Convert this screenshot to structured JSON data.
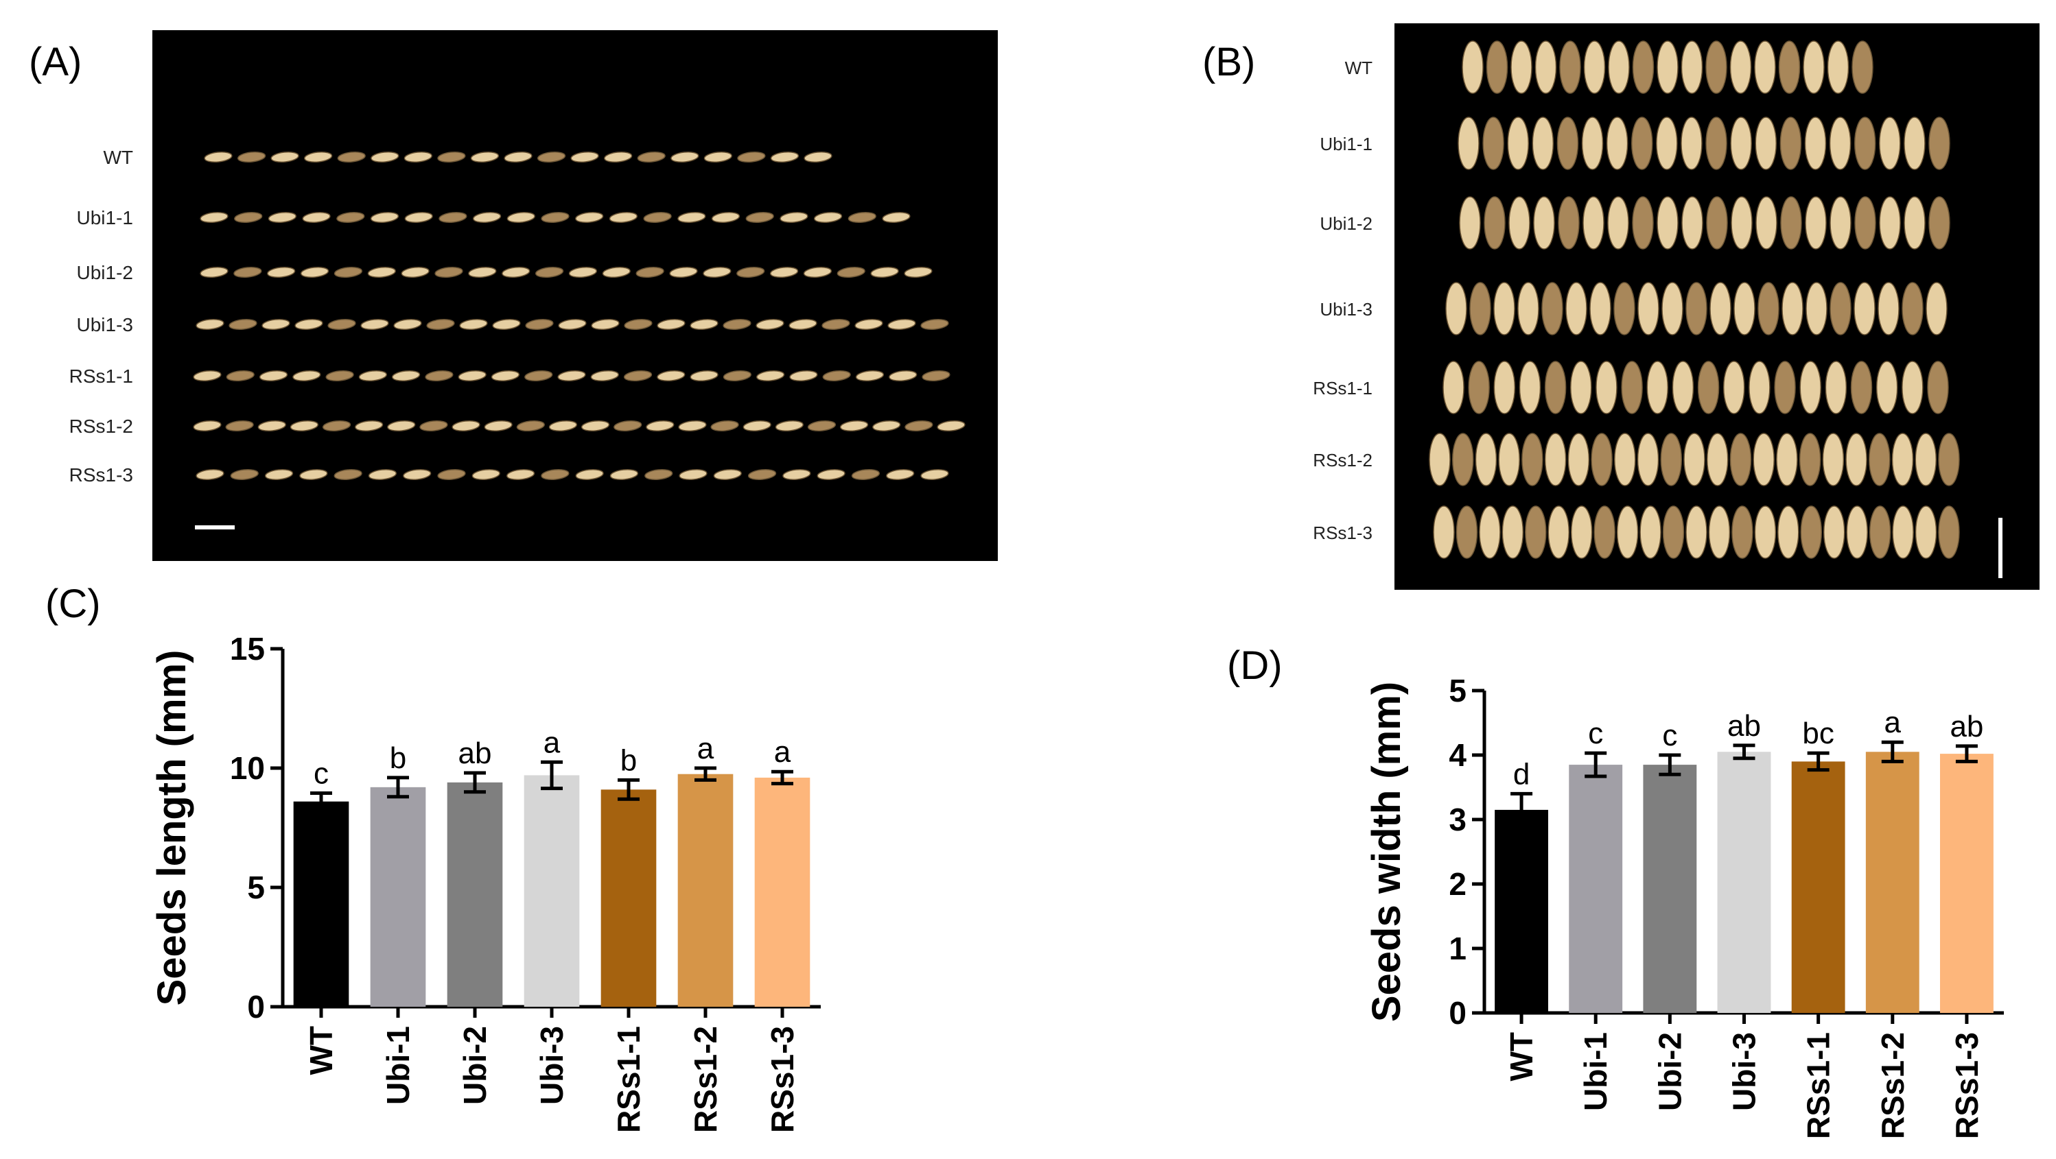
{
  "panel_labels": {
    "a": "(A)",
    "b": "(B)",
    "c": "(C)",
    "d": "(D)"
  },
  "photo_a": {
    "rows": [
      "WT",
      "Ubi1-1",
      "Ubi1-2",
      "Ubi1-3",
      "RSs1-1",
      "RSs1-2",
      "RSs1-3"
    ],
    "seed_counts": [
      19,
      21,
      22,
      23,
      23,
      24,
      22
    ]
  },
  "photo_b": {
    "rows": [
      "WT",
      "Ubi1-1",
      "Ubi1-2",
      "Ubi1-3",
      "RSs1-1",
      "RSs1-2",
      "RSs1-3"
    ],
    "seed_counts": [
      17,
      20,
      20,
      21,
      20,
      23,
      23
    ]
  },
  "colors": {
    "bars": [
      "#000000",
      "#a19fa6",
      "#7f7f7f",
      "#d6d6d6",
      "#a5620f",
      "#d69548",
      "#fdb67b"
    ],
    "photo_bg": "#000000",
    "seed_light": "#e6cfa2",
    "seed_dark": "#a8875a"
  },
  "chart_data": [
    {
      "type": "bar",
      "panel": "C",
      "categories": [
        "WT",
        "Ubi-1",
        "Ubi-2",
        "Ubi-3",
        "RSs1-1",
        "RSs1-2",
        "RSs1-3"
      ],
      "values": [
        8.6,
        9.2,
        9.4,
        9.7,
        9.1,
        9.75,
        9.6
      ],
      "errors": [
        0.35,
        0.4,
        0.4,
        0.55,
        0.4,
        0.25,
        0.25
      ],
      "sig_letters": [
        "c",
        "b",
        "ab",
        "a",
        "b",
        "a",
        "a"
      ],
      "ylabel": "Seeds length (mm)",
      "xlabel": "",
      "ylim": [
        0,
        15
      ],
      "yticks": [
        "0",
        "5",
        "10",
        "15"
      ],
      "ytick_values": [
        0,
        5,
        10,
        15
      ]
    },
    {
      "type": "bar",
      "panel": "D",
      "categories": [
        "WT",
        "Ubi-1",
        "Ubi-2",
        "Ubi-3",
        "RSs1-1",
        "RSs1-2",
        "RSs1-3"
      ],
      "values": [
        3.15,
        3.85,
        3.85,
        4.05,
        3.9,
        4.05,
        4.02
      ],
      "errors": [
        0.25,
        0.18,
        0.15,
        0.1,
        0.13,
        0.15,
        0.12
      ],
      "sig_letters": [
        "d",
        "c",
        "c",
        "ab",
        "bc",
        "a",
        "ab"
      ],
      "ylabel": "Seeds width (mm)",
      "xlabel": "",
      "ylim": [
        0,
        5
      ],
      "yticks": [
        "0",
        "1",
        "2",
        "3",
        "4",
        "5"
      ],
      "ytick_values": [
        0,
        1,
        2,
        3,
        4,
        5
      ]
    }
  ]
}
